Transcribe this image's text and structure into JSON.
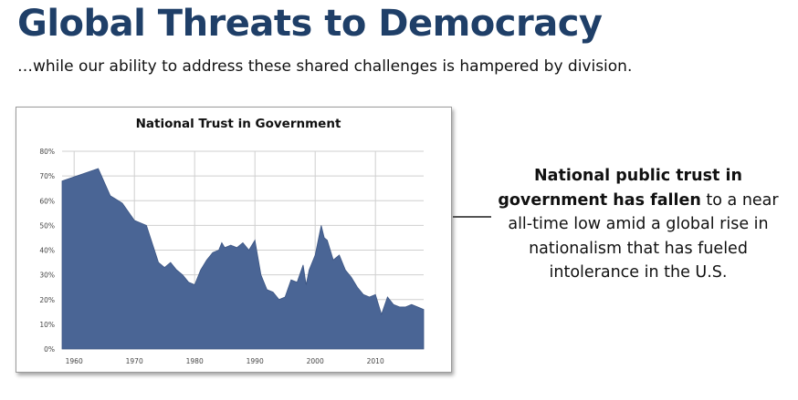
{
  "slide": {
    "title": "Global Threats to Democracy",
    "subtitle": "…while our ability to address these shared challenges is hampered by division.",
    "callout_bold": "National public trust in government has fallen",
    "callout_rest": " to a near all-time low amid a global rise in nationalism that has fueled intolerance in the U.S."
  },
  "colors": {
    "title": "#1f3f68",
    "area_fill": "#4a6595",
    "grid": "#cfcfcf"
  },
  "chart_data": {
    "type": "area",
    "title": "National Trust in Government",
    "xlabel": "",
    "ylabel": "",
    "xlim": [
      1958,
      2018
    ],
    "ylim": [
      0,
      80
    ],
    "x_ticks": [
      1960,
      1970,
      1980,
      1990,
      2000,
      2010
    ],
    "x_tick_labels": [
      "1960",
      "1970",
      "1980",
      "1990",
      "2000",
      "2010"
    ],
    "y_ticks": [
      0,
      10,
      20,
      30,
      40,
      50,
      60,
      70,
      80
    ],
    "y_tick_labels": [
      "0%",
      "10%",
      "20%",
      "30%",
      "40%",
      "50%",
      "60%",
      "70%",
      "80%"
    ],
    "grid": "vertical-and-horizontal",
    "series": [
      {
        "x": [
          1958,
          1964,
          1966,
          1968,
          1970,
          1972,
          1974,
          1975,
          1976,
          1977,
          1978,
          1979,
          1980,
          1981,
          1982,
          1983,
          1984,
          1984.5,
          1985,
          1986,
          1987,
          1988,
          1989,
          1990,
          1991,
          1992,
          1993,
          1994,
          1995,
          1996,
          1997,
          1998,
          1998.5,
          1999,
          2000,
          2001,
          2001.5,
          2002,
          2003,
          2004,
          2005,
          2006,
          2007,
          2008,
          2009,
          2010,
          2011,
          2012,
          2013,
          2014,
          2015,
          2016,
          2017,
          2018
        ],
        "values": [
          68,
          73,
          62,
          59,
          52,
          50,
          35,
          33,
          35,
          32,
          30,
          27,
          26,
          32,
          36,
          39,
          40,
          43,
          41,
          42,
          41,
          43,
          40,
          44,
          30,
          24,
          23,
          20,
          21,
          28,
          27,
          34,
          26,
          32,
          38,
          50,
          45,
          44,
          36,
          38,
          32,
          29,
          25,
          22,
          21,
          22,
          14,
          21,
          18,
          17,
          17,
          18,
          17,
          16
        ]
      }
    ]
  }
}
